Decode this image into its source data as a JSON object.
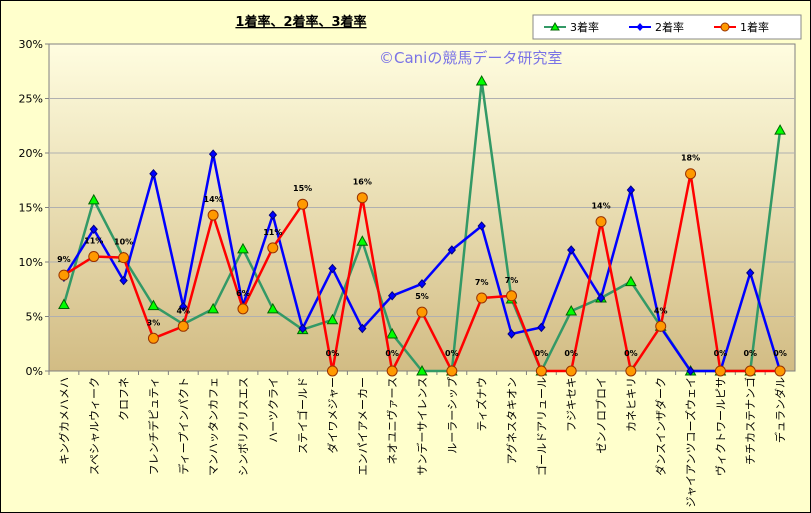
{
  "chart_data": {
    "type": "line",
    "title": "1着率、2着率、3着率",
    "watermark": "©Caniの競馬データ研究室",
    "ylim": [
      0,
      30
    ],
    "yticks": [
      "0%",
      "5%",
      "10%",
      "15%",
      "20%",
      "25%",
      "30%"
    ],
    "grid": true,
    "legend_position": "top-right",
    "categories": [
      "キングカメハメハ",
      "スペシャルウィーク",
      "クロフネ",
      "フレンチデピュティ",
      "ディープインパクト",
      "マンハッタンカフェ",
      "シンボリクリスエス",
      "ハーツクライ",
      "ステイゴールド",
      "ダイワメジャー",
      "エンパイアメーカー",
      "ネオユニヴァース",
      "サンデーサイレンス",
      "ルーラーシップ",
      "ティズナウ",
      "アグネスタキオン",
      "ゴールドアリュール",
      "フジキセキ",
      "ゼンノロブロイ",
      "カネヒキリ",
      "ダンスインザダーク",
      "ジャイアンツコーズウェイ",
      "ヴィクトワールピサ",
      "チチカステナンゴ",
      "デュランダル"
    ],
    "series": [
      {
        "name": "3着率",
        "color": "#339966",
        "marker": "triangle",
        "marker_fill": "#00ff00",
        "values": [
          6.1,
          15.7,
          10.4,
          6.0,
          4.3,
          5.7,
          11.2,
          5.7,
          3.8,
          4.7,
          11.9,
          3.4,
          0,
          0,
          26.6,
          6.6,
          0,
          5.5,
          6.7,
          8.2,
          4.1,
          0,
          0,
          0,
          22.1
        ]
      },
      {
        "name": "2着率",
        "color": "#0000ff",
        "marker": "diamond",
        "marker_fill": "#0000ff",
        "values": [
          8.6,
          13.0,
          8.3,
          18.1,
          5.9,
          19.9,
          6.0,
          14.3,
          3.9,
          9.4,
          3.9,
          6.9,
          8.0,
          11.1,
          13.3,
          3.4,
          4.0,
          11.1,
          6.7,
          16.6,
          4.0,
          0,
          0,
          9.0,
          0
        ]
      },
      {
        "name": "1着率",
        "color": "#ff0000",
        "marker": "circle",
        "marker_fill": "#ff9900",
        "values": [
          8.8,
          10.5,
          10.4,
          3.0,
          4.1,
          14.3,
          5.7,
          11.3,
          15.3,
          0,
          15.9,
          0,
          5.4,
          0,
          6.7,
          6.9,
          0,
          0,
          13.7,
          0,
          4.1,
          18.1,
          0,
          0,
          0
        ]
      }
    ],
    "data_labels": [
      "9%",
      "11%",
      "10%",
      "3%",
      "4%",
      "14%",
      "6%",
      "11%",
      "15%",
      "0%",
      "16%",
      "0%",
      "5%",
      "0%",
      "7%",
      "7%",
      "0%",
      "0%",
      "14%",
      "0%",
      "4%",
      "18%",
      "0%",
      "0%",
      "0%"
    ]
  }
}
